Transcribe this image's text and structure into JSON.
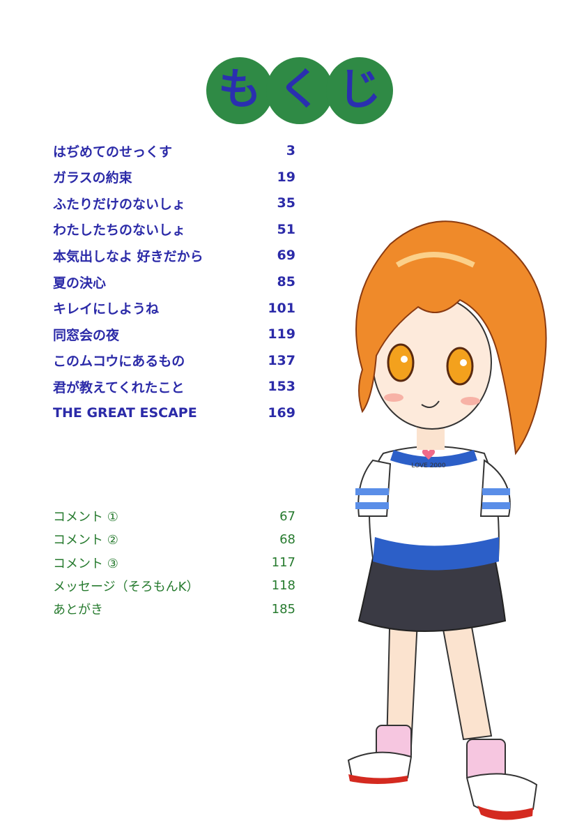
{
  "title": {
    "chars": [
      "も",
      "く",
      "じ"
    ],
    "circle_color": "#2f8a45",
    "text_color": "#2a2fb0"
  },
  "contents": [
    {
      "title": "はぢめてのせっくす",
      "page": "3"
    },
    {
      "title": "ガラスの約束",
      "page": "19"
    },
    {
      "title": "ふたりだけのないしょ",
      "page": "35"
    },
    {
      "title": "わたしたちのないしょ",
      "page": "51"
    },
    {
      "title": "本気出しなよ 好きだから",
      "page": "69"
    },
    {
      "title": "夏の決心",
      "page": "85"
    },
    {
      "title": "キレイにしようね",
      "page": "101"
    },
    {
      "title": "同窓会の夜",
      "page": "119"
    },
    {
      "title": "このムコウにあるもの",
      "page": "137"
    },
    {
      "title": "君が教えてくれたこと",
      "page": "153"
    },
    {
      "title": "THE GREAT ESCAPE",
      "page": "169"
    }
  ],
  "extras": [
    {
      "title": "コメント ①",
      "page": "67"
    },
    {
      "title": "コメント ②",
      "page": "68"
    },
    {
      "title": "コメント ③",
      "page": "117"
    },
    {
      "title": "メッセージ（そろもんK）",
      "page": "118"
    },
    {
      "title": "あとがき",
      "page": "185"
    }
  ],
  "illustration": {
    "shirt_text": "LOVE 2000"
  }
}
